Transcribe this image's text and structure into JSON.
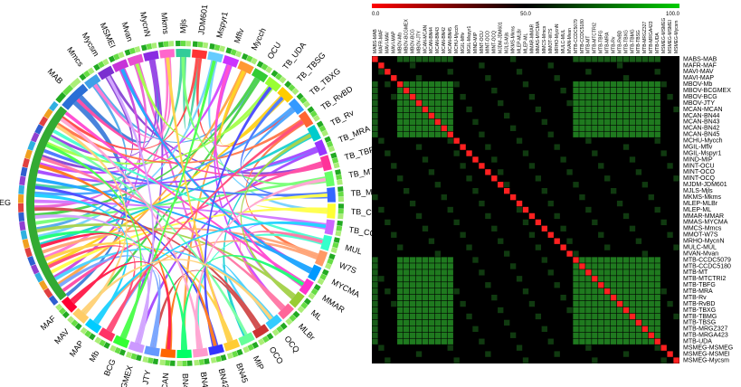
{
  "chord": {
    "labels": [
      "MAB",
      "Mmcs",
      "Mycsm",
      "MSMEI",
      "Mvan",
      "MycnN",
      "Mkms",
      "Mjls",
      "JDM601",
      "Mspyr1",
      "Mflv",
      "Mycch",
      "OCU",
      "TB_UDA",
      "TB_TBSG",
      "TB_TBXG",
      "TB_RvBD",
      "TB_Rv",
      "TB_MRA",
      "TB_TBFG",
      "TB_MTCTRI2",
      "TB_MT",
      "TB_CCDC5180",
      "TB_CCDC5079",
      "MUL",
      "W7S",
      "MYCMA",
      "MMAR",
      "ML",
      "MLBr",
      "OCQ",
      "OCO",
      "MIP",
      "BN45",
      "BN42",
      "BN43",
      "BN44",
      "MCAN",
      "JTY",
      "BCGMEX",
      "BCG",
      "Mb",
      "MAP",
      "MAV",
      "MAF",
      "MSMEG"
    ],
    "colors": [
      "#2b6fd6",
      "#3fa0e8",
      "#7b2fd0",
      "#c633d8",
      "#e84fd1",
      "#8a2be2",
      "#ff66cc",
      "#33cc99",
      "#ff3333",
      "#66ccff",
      "#cc33ff",
      "#ff9933",
      "#33cc33",
      "#99ff33",
      "#ffcc00",
      "#3399ff",
      "#ff6633",
      "#00cccc",
      "#9933ff",
      "#ff3399",
      "#66ff66",
      "#3366ff",
      "#ffff33",
      "#cc66ff",
      "#33ffcc",
      "#ff9966",
      "#0099ff",
      "#ff33cc",
      "#99cc33",
      "#ff6699",
      "#33ccff",
      "#cc3333",
      "#66ff99",
      "#ffcc33",
      "#3333ff",
      "#ff99cc",
      "#00ff66",
      "#ff6600",
      "#6699ff",
      "#cc99ff",
      "#33ff33",
      "#ff3366",
      "#00ccff",
      "#ffcc66",
      "#ff0033",
      "#33aa33"
    ]
  },
  "heatmap": {
    "colorbar_ticks": [
      "0.0",
      "50.0",
      "100.0"
    ],
    "col_labels": [
      "MABS-MAB",
      "MAFR-MAF",
      "MAVI-MAV",
      "MAVI-MAP",
      "MBOV-Mb",
      "MBOV-BCGMEX",
      "MBOV-BCG",
      "MBOV-JTY",
      "MCAN-MCAN",
      "MCAN-BN44",
      "MCAN-BN43",
      "MCAN-BN42",
      "MCAN-BN45",
      "MCHU-Mycch",
      "MGIL-Mflv",
      "MGIL-Mspyr1",
      "MIND-MIP",
      "MINT-OCU",
      "MINT-OCO",
      "MINT-OCQ",
      "MJDM-JDM601",
      "MJLS-Mjls",
      "MKMS-Mkms",
      "MLEP-MLBr",
      "MLEP-ML",
      "MMAR-MMAR",
      "MMAS-MYCMA",
      "MMCS-Mmcs",
      "MMOT-W7S",
      "MRHO-MycnN",
      "MULC-MUL",
      "MVAN-Mvan",
      "MTB-CCDC5079",
      "MTB-CCDC5180",
      "MTB-MT",
      "MTB-MTCTRI2",
      "MTB-TBFG",
      "MTB-MRA",
      "MTB-Rv",
      "MTB-RvBD",
      "MTB-TBXG",
      "MTB-TBMG",
      "MTB-TBSG",
      "MTB-MRGZ327",
      "MTB-MRGA423",
      "MTB-UDA",
      "MSMEG-MSMEG",
      "MSMEG-MSMEI",
      "MSMEG-Mycsm"
    ],
    "row_labels": [
      "MABS-MAB",
      "MAFR-MAF",
      "MAVI-MAV",
      "MAVI-MAP",
      "MBOV-Mb",
      "MBOV-BCGMEX",
      "MBOV-BCG",
      "MBOV-JTY",
      "MCAN-MCAN",
      "MCAN-BN44",
      "MCAN-BN43",
      "MCAN-BN42",
      "MCAN-BN45",
      "MCHU-Mycch",
      "MGIL-Mflv",
      "MGIL-Mspyr1",
      "MIND-MIP",
      "MINT-OCU",
      "MINT-OCO",
      "MINT-OCQ",
      "MJDM-JDM601",
      "MJLS-Mjls",
      "MKMS-Mkms",
      "MLEP-MLBr",
      "MLEP-ML",
      "MMAR-MMAR",
      "MMAS-MYCMA",
      "MMCS-Mmcs",
      "MMOT-W7S",
      "MRHO-MycnN",
      "MULC-MUL",
      "MVAN-Mvan",
      "MTB-CCDC5079",
      "MTB-CCDC5180",
      "MTB-MT",
      "MTB-MTCTRI2",
      "MTB-TBFG",
      "MTB-MRA",
      "MTB-Rv",
      "MTB-RvBD",
      "MTB-TBXG",
      "MTB-TBMG",
      "MTB-TBSG",
      "MTB-MRGZ327",
      "MTB-MRGA423",
      "MTB-UDA",
      "MSMEG-MSMEG",
      "MSMEG-MSMEI",
      "MSMEG-Mycsm"
    ],
    "colors": {
      "low": "#ff0000",
      "mid": "#000000",
      "high": "#00cc00",
      "diagonal": "#ff2020"
    }
  }
}
